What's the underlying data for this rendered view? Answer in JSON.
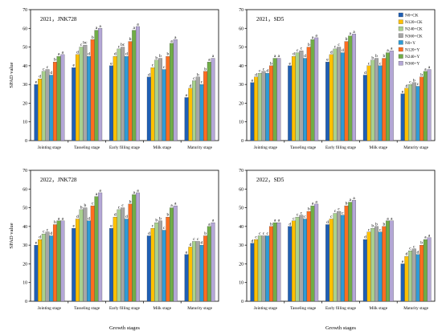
{
  "x_label": "Growth stages",
  "y_label": "SPAD value",
  "stages": [
    "Jointing stage",
    "Tasseling stage",
    "Early filling stage",
    "Milk stage",
    "Maturity stage"
  ],
  "treatments": [
    "N0+CK",
    "N120+CK",
    "N240+CK",
    "N360+CK",
    "N0+Y",
    "N120+Y",
    "N240+Y",
    "N360+Y"
  ],
  "colors": [
    "#1f5fb4",
    "#ffc000",
    "#a9d18e",
    "#a6a6a6",
    "#2e9bd6",
    "#ff6d1f",
    "#70ad47",
    "#b4a7d6"
  ],
  "chart_data": [
    {
      "type": "bar",
      "title": "2021，JNK728",
      "categories": [
        "Jointing stage",
        "Tasseling stage",
        "Early filling stage",
        "Milk stage",
        "Maturity stage"
      ],
      "ylim": [
        0,
        70
      ],
      "yticks": [
        0,
        10,
        20,
        30,
        40,
        50,
        60,
        70
      ],
      "series": [
        {
          "name": "N0+CK",
          "values": [
            30,
            39,
            40,
            34,
            23
          ]
        },
        {
          "name": "N120+CK",
          "values": [
            33,
            46,
            45,
            39,
            28
          ]
        },
        {
          "name": "N240+CK",
          "values": [
            37,
            50,
            49,
            43,
            32
          ]
        },
        {
          "name": "N360+CK",
          "values": [
            38,
            51,
            50,
            44,
            34
          ]
        },
        {
          "name": "N0+Y",
          "values": [
            35,
            45,
            45,
            38,
            30
          ]
        },
        {
          "name": "N120+Y",
          "values": [
            42,
            54,
            53,
            45,
            37
          ]
        },
        {
          "name": "N240+Y",
          "values": [
            45,
            59,
            59,
            52,
            42
          ]
        },
        {
          "name": "N360+Y",
          "values": [
            46,
            60,
            61,
            54,
            44
          ]
        }
      ],
      "letters": [
        [
          "e",
          "d",
          "c",
          "c",
          "d",
          "b",
          "a",
          "a"
        ],
        [
          "e",
          "d",
          "c",
          "bc",
          "d",
          "b",
          "a",
          "a"
        ],
        [
          "e",
          "d",
          "c",
          "bc",
          "d",
          "b",
          "a",
          "a"
        ],
        [
          "d",
          "c",
          "b",
          "b",
          "c",
          "b",
          "a",
          "a"
        ],
        [
          "e",
          "d",
          "c",
          "b",
          "c",
          "b",
          "a",
          "a"
        ]
      ]
    },
    {
      "type": "bar",
      "title": "2021，SD5",
      "categories": [
        "Jointing stage",
        "Tasseling stage",
        "Early filling stage",
        "Milk stage",
        "Maturity stage"
      ],
      "ylim": [
        0,
        70
      ],
      "yticks": [
        0,
        10,
        20,
        30,
        40,
        50,
        60,
        70
      ],
      "legend": "right",
      "series": [
        {
          "name": "N0+CK",
          "values": [
            31,
            40,
            42,
            35,
            25
          ]
        },
        {
          "name": "N120+CK",
          "values": [
            34,
            45,
            46,
            40,
            28
          ]
        },
        {
          "name": "N240+CK",
          "values": [
            36,
            47,
            49,
            43,
            30
          ]
        },
        {
          "name": "N360+CK",
          "values": [
            37,
            48,
            50,
            44,
            31
          ]
        },
        {
          "name": "N0+Y",
          "values": [
            36,
            44,
            47,
            40,
            29
          ]
        },
        {
          "name": "N120+Y",
          "values": [
            40,
            50,
            53,
            44,
            34
          ]
        },
        {
          "name": "N240+Y",
          "values": [
            44,
            54,
            56,
            47,
            37
          ]
        },
        {
          "name": "N360+Y",
          "values": [
            44,
            55,
            57,
            48,
            38
          ]
        }
      ],
      "letters": [
        [
          "e",
          "d",
          "c",
          "c",
          "d",
          "b",
          "a",
          "a"
        ],
        [
          "e",
          "d",
          "c",
          "c",
          "d",
          "b",
          "a",
          "a"
        ],
        [
          "e",
          "d",
          "c",
          "c",
          "d",
          "b",
          "a",
          "a"
        ],
        [
          "d",
          "c",
          "b",
          "b",
          "c",
          "b",
          "a",
          "a"
        ],
        [
          "e",
          "d",
          "c",
          "b",
          "c",
          "b",
          "a",
          "a"
        ]
      ]
    },
    {
      "type": "bar",
      "title": "2022，JNK728",
      "categories": [
        "Jointing stage",
        "Tasseling stage",
        "Early filling stage",
        "Milk stage",
        "Maturity stage"
      ],
      "ylim": [
        0,
        70
      ],
      "yticks": [
        0,
        10,
        20,
        30,
        40,
        50,
        60,
        70
      ],
      "series": [
        {
          "name": "N0+CK",
          "values": [
            30,
            39,
            39,
            35,
            25
          ]
        },
        {
          "name": "N120+CK",
          "values": [
            33,
            44,
            45,
            39,
            29
          ]
        },
        {
          "name": "N240+CK",
          "values": [
            36,
            49,
            49,
            42,
            32
          ]
        },
        {
          "name": "N360+CK",
          "values": [
            37,
            50,
            50,
            43,
            32
          ]
        },
        {
          "name": "N0+Y",
          "values": [
            35,
            43,
            44,
            38,
            30
          ]
        },
        {
          "name": "N120+Y",
          "values": [
            41,
            51,
            52,
            45,
            35
          ]
        },
        {
          "name": "N240+Y",
          "values": [
            43,
            56,
            57,
            50,
            40
          ]
        },
        {
          "name": "N360+Y",
          "values": [
            43,
            58,
            58,
            51,
            42
          ]
        }
      ],
      "letters": [
        [
          "e",
          "d",
          "c",
          "c",
          "d",
          "b",
          "a",
          "a"
        ],
        [
          "e",
          "d",
          "b",
          "b",
          "d",
          "c",
          "a",
          "a"
        ],
        [
          "e",
          "d",
          "c",
          "c",
          "d",
          "b",
          "a",
          "a"
        ],
        [
          "d",
          "c",
          "b",
          "b",
          "c",
          "b",
          "a",
          "a"
        ],
        [
          "e",
          "d",
          "c",
          "c",
          "d",
          "b",
          "a",
          "a"
        ]
      ]
    },
    {
      "type": "bar",
      "title": "2022，SD5",
      "categories": [
        "Jointing stage",
        "Tasseling stage",
        "Early filling stage",
        "Milk stage",
        "Maturity stage"
      ],
      "ylim": [
        0,
        70
      ],
      "yticks": [
        0,
        10,
        20,
        30,
        40,
        50,
        60,
        70
      ],
      "series": [
        {
          "name": "N0+CK",
          "values": [
            31,
            40,
            41,
            33,
            20
          ]
        },
        {
          "name": "N120+CK",
          "values": [
            33,
            43,
            44,
            37,
            24
          ]
        },
        {
          "name": "N240+CK",
          "values": [
            35,
            45,
            47,
            39,
            27
          ]
        },
        {
          "name": "N360+CK",
          "values": [
            35,
            46,
            48,
            40,
            28
          ]
        },
        {
          "name": "N0+Y",
          "values": [
            35,
            44,
            46,
            37,
            25
          ]
        },
        {
          "name": "N120+Y",
          "values": [
            40,
            48,
            51,
            40,
            30
          ]
        },
        {
          "name": "N240+Y",
          "values": [
            42,
            51,
            53,
            43,
            33
          ]
        },
        {
          "name": "N360+Y",
          "values": [
            42,
            52,
            54,
            43,
            34
          ]
        }
      ],
      "letters": [
        [
          "d",
          "c",
          "c",
          "c",
          "c",
          "b",
          "a",
          "a"
        ],
        [
          "d",
          "c",
          "c",
          "c",
          "c",
          "b",
          "a",
          "a"
        ],
        [
          "d",
          "c",
          "c",
          "c",
          "c",
          "b",
          "a",
          "a"
        ],
        [
          "d",
          "c",
          "b",
          "b",
          "c",
          "b",
          "a",
          "a"
        ],
        [
          "e",
          "d",
          "c",
          "c",
          "d",
          "b",
          "a",
          "a"
        ]
      ]
    }
  ]
}
